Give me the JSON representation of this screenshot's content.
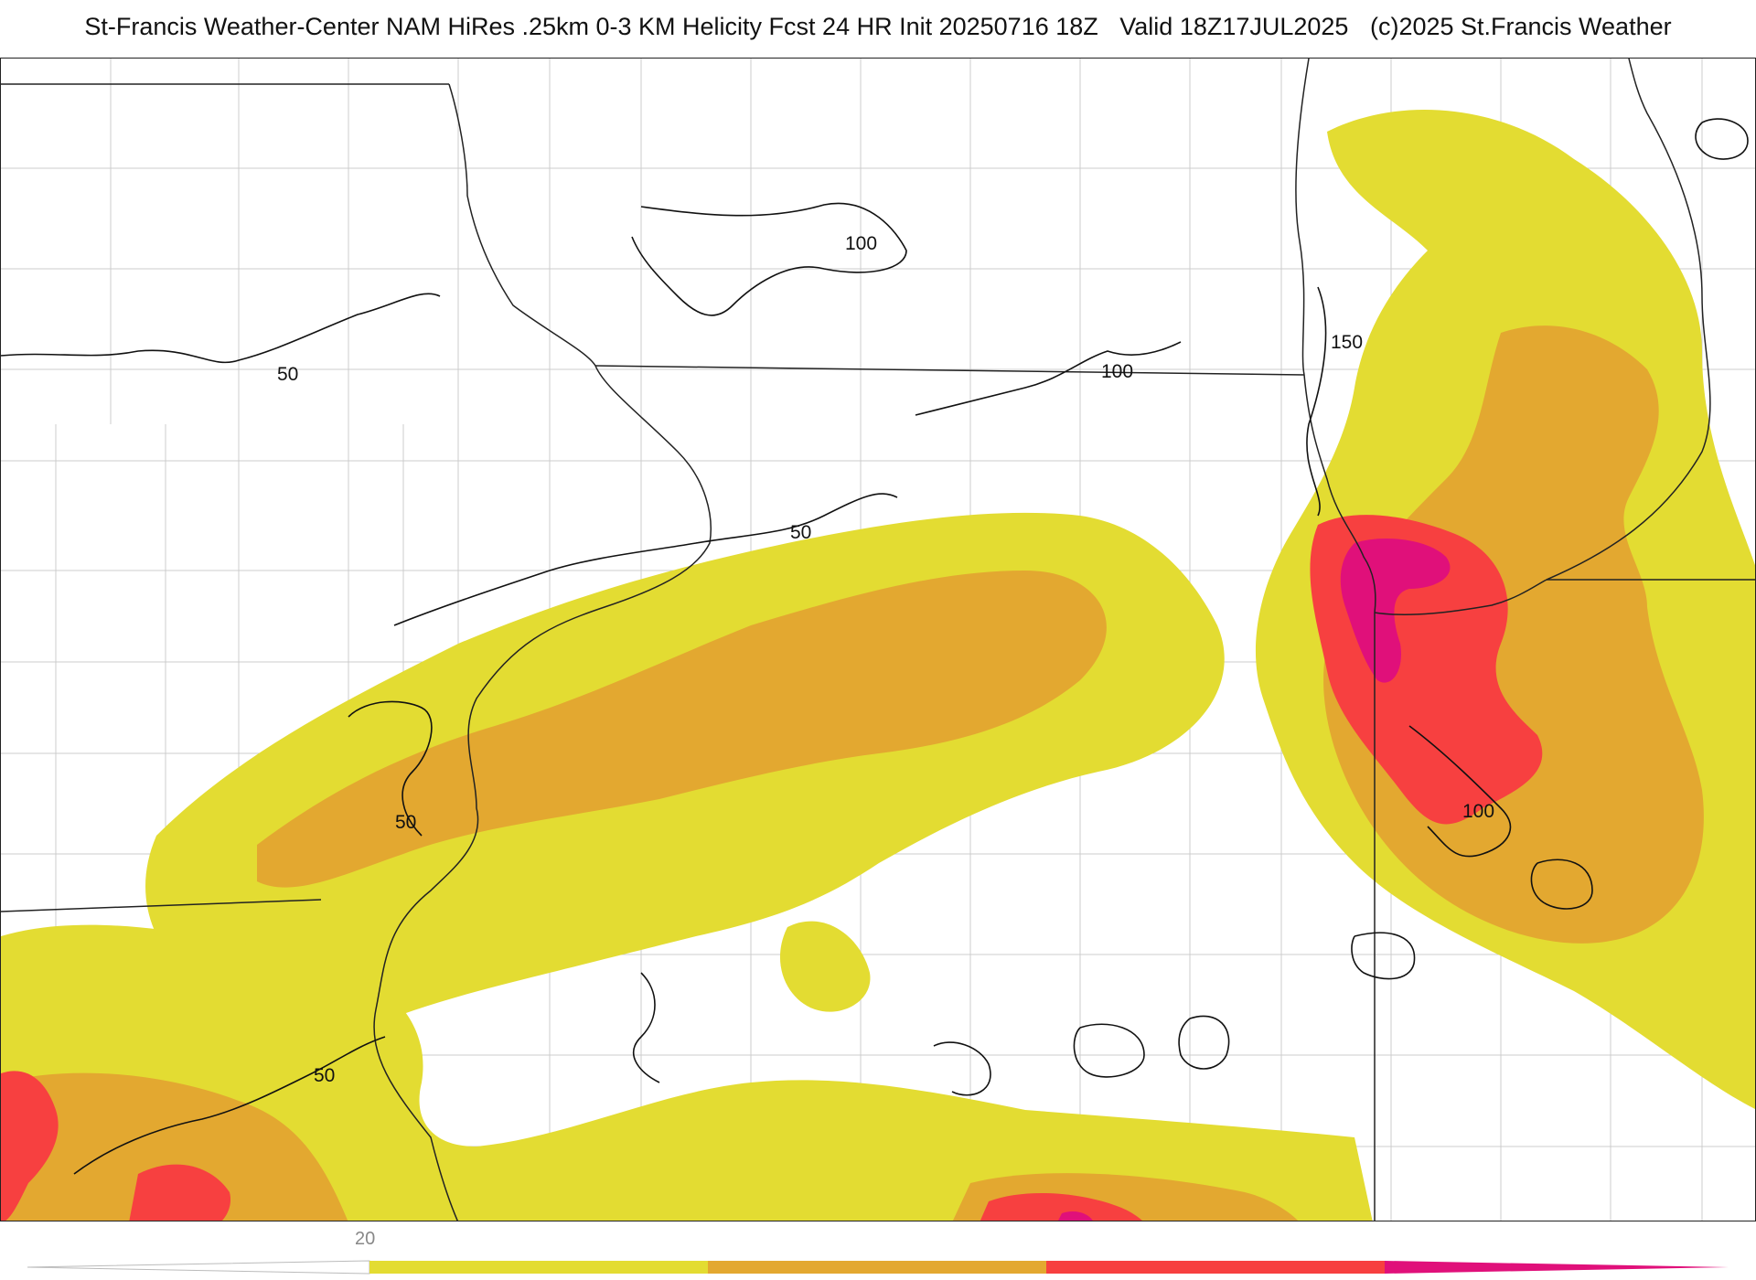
{
  "header": {
    "model": "St-Francis Weather-Center NAM HiRes .25km 0-3 KM Helicity Fcst 24 HR Init 20250716 18Z",
    "valid": "Valid 18Z17JUL2025",
    "copyright": "(c)2025 St.Francis Weather"
  },
  "contour_labels": {
    "l1": "50",
    "l2": "100",
    "l3": "100",
    "l4": "150",
    "l5": "50",
    "l6": "50",
    "l7": "100",
    "l8": "50"
  },
  "colorbar": {
    "tick_label": "20",
    "colors": [
      "#e3dc32",
      "#e3a830",
      "#f74040",
      "#e0107a"
    ]
  },
  "colors": {
    "level_1": "#e3dc32",
    "level_2": "#e3a830",
    "level_3": "#f74040",
    "level_4": "#e0107a",
    "contour": "#111111",
    "county_lines": "#c8c8c8",
    "state_lines": "#222222"
  }
}
